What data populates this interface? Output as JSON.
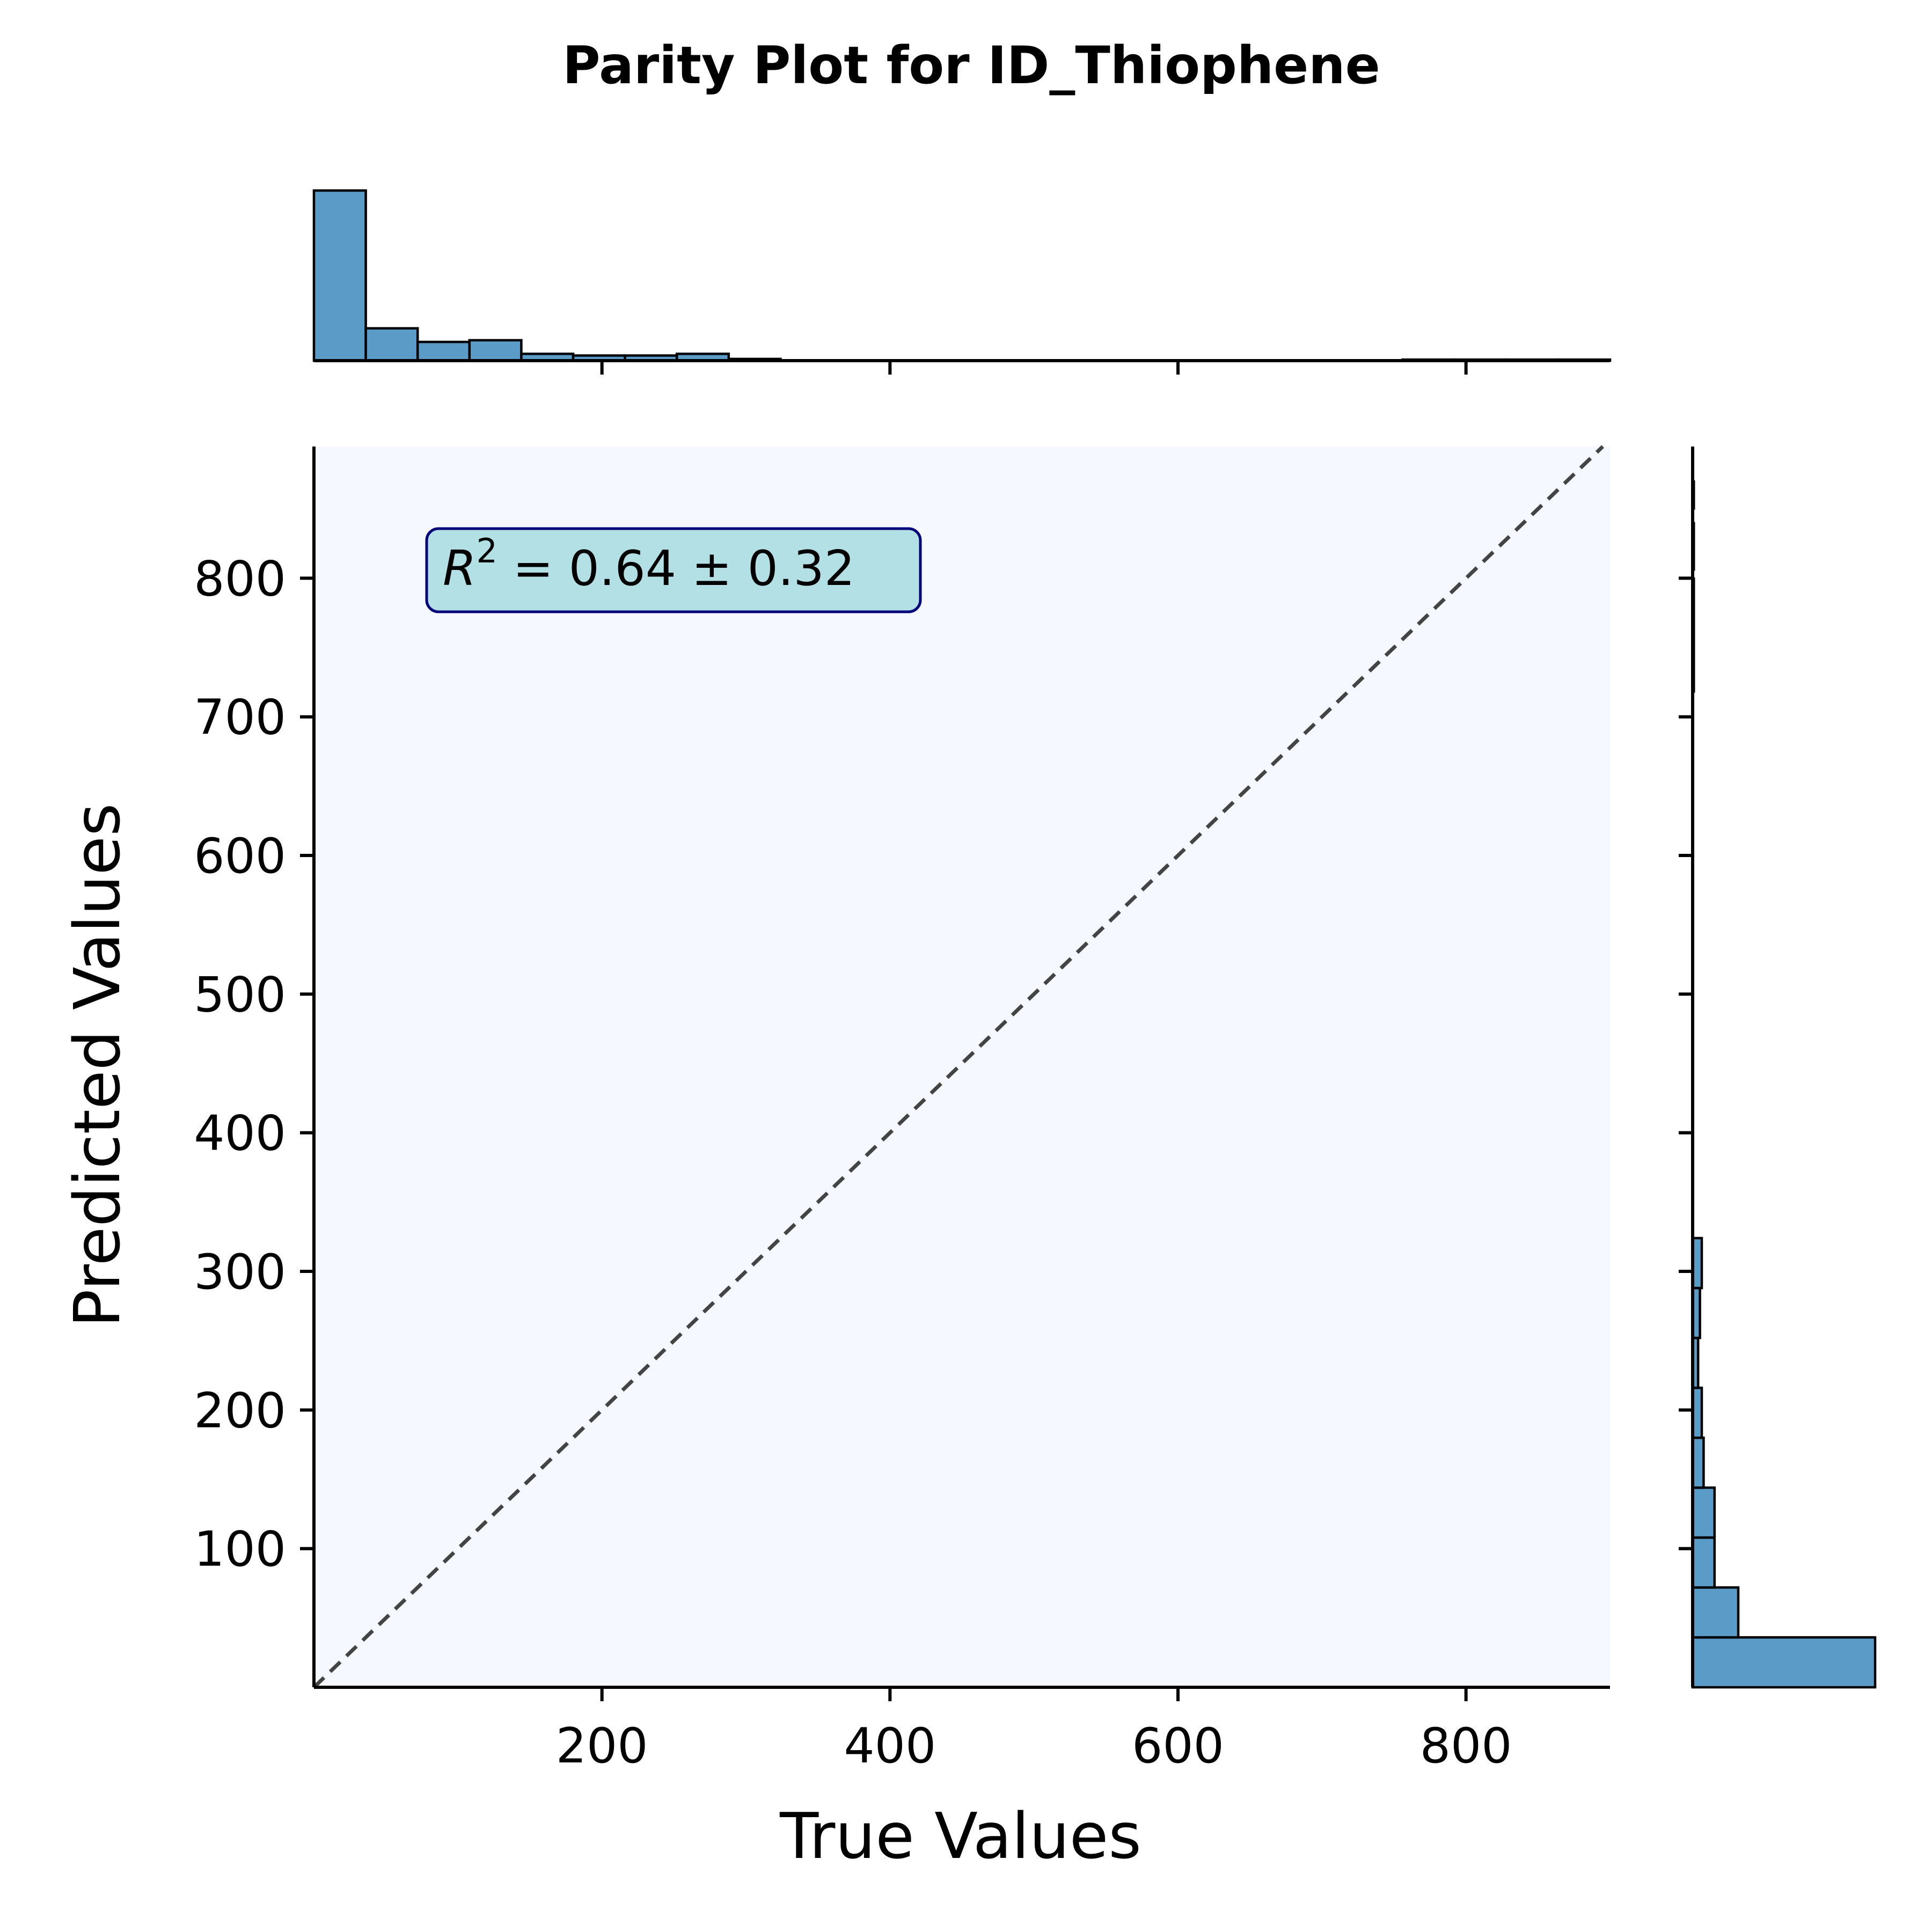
{
  "chart_data": {
    "type": "scatter",
    "title": "Parity Plot for ID_Thiophene",
    "xlabel": "True Values",
    "ylabel": "Predicted Values",
    "xlim": [
      0,
      900
    ],
    "ylim": [
      0,
      895
    ],
    "xticks": [
      200,
      400,
      600,
      800
    ],
    "yticks": [
      100,
      200,
      300,
      400,
      500,
      600,
      700,
      800
    ],
    "xtick_labels": [
      "200",
      "400",
      "600",
      "800"
    ],
    "ytick_labels": [
      "100",
      "200",
      "300",
      "400",
      "500",
      "600",
      "700",
      "800"
    ],
    "parity_line": {
      "x": [
        0,
        900
      ],
      "y": [
        0,
        900
      ],
      "style": "dashed",
      "color": "#444444"
    },
    "annotation": {
      "text_prefix": "R",
      "superscript": "2",
      "text_rest": " = 0.64 ± 0.32"
    },
    "grid": false,
    "plot_background": "#f5f9ff",
    "bar_color": "#5a9bc8",
    "annotation_box_color": "#b2e0e5",
    "annotation_border_color": "#00007a",
    "points": [],
    "top_histogram": {
      "bin_edges": [
        0,
        36,
        72,
        108,
        144,
        180,
        216,
        252,
        288,
        324,
        360,
        396,
        432,
        468,
        504,
        540,
        576,
        612,
        648,
        684,
        720,
        756,
        792,
        828,
        864,
        900
      ],
      "counts": [
        100,
        19,
        11,
        12,
        4,
        3,
        3,
        4,
        1,
        0.2,
        0.2,
        0.2,
        0.2,
        0.2,
        0.2,
        0.2,
        0.2,
        0.2,
        0.2,
        0.2,
        0.2,
        0.6,
        0.6,
        0.6,
        0.6
      ]
    },
    "right_histogram": {
      "bin_edges": [
        0,
        36,
        72,
        108,
        144,
        180,
        216,
        252,
        288,
        324
      ],
      "counts": [
        100,
        25,
        12,
        12,
        6,
        5,
        3,
        4,
        5
      ],
      "sparse_bins": [
        [
          718,
          792
        ],
        [
          790,
          800
        ],
        [
          806,
          840
        ],
        [
          850,
          870
        ]
      ]
    }
  }
}
